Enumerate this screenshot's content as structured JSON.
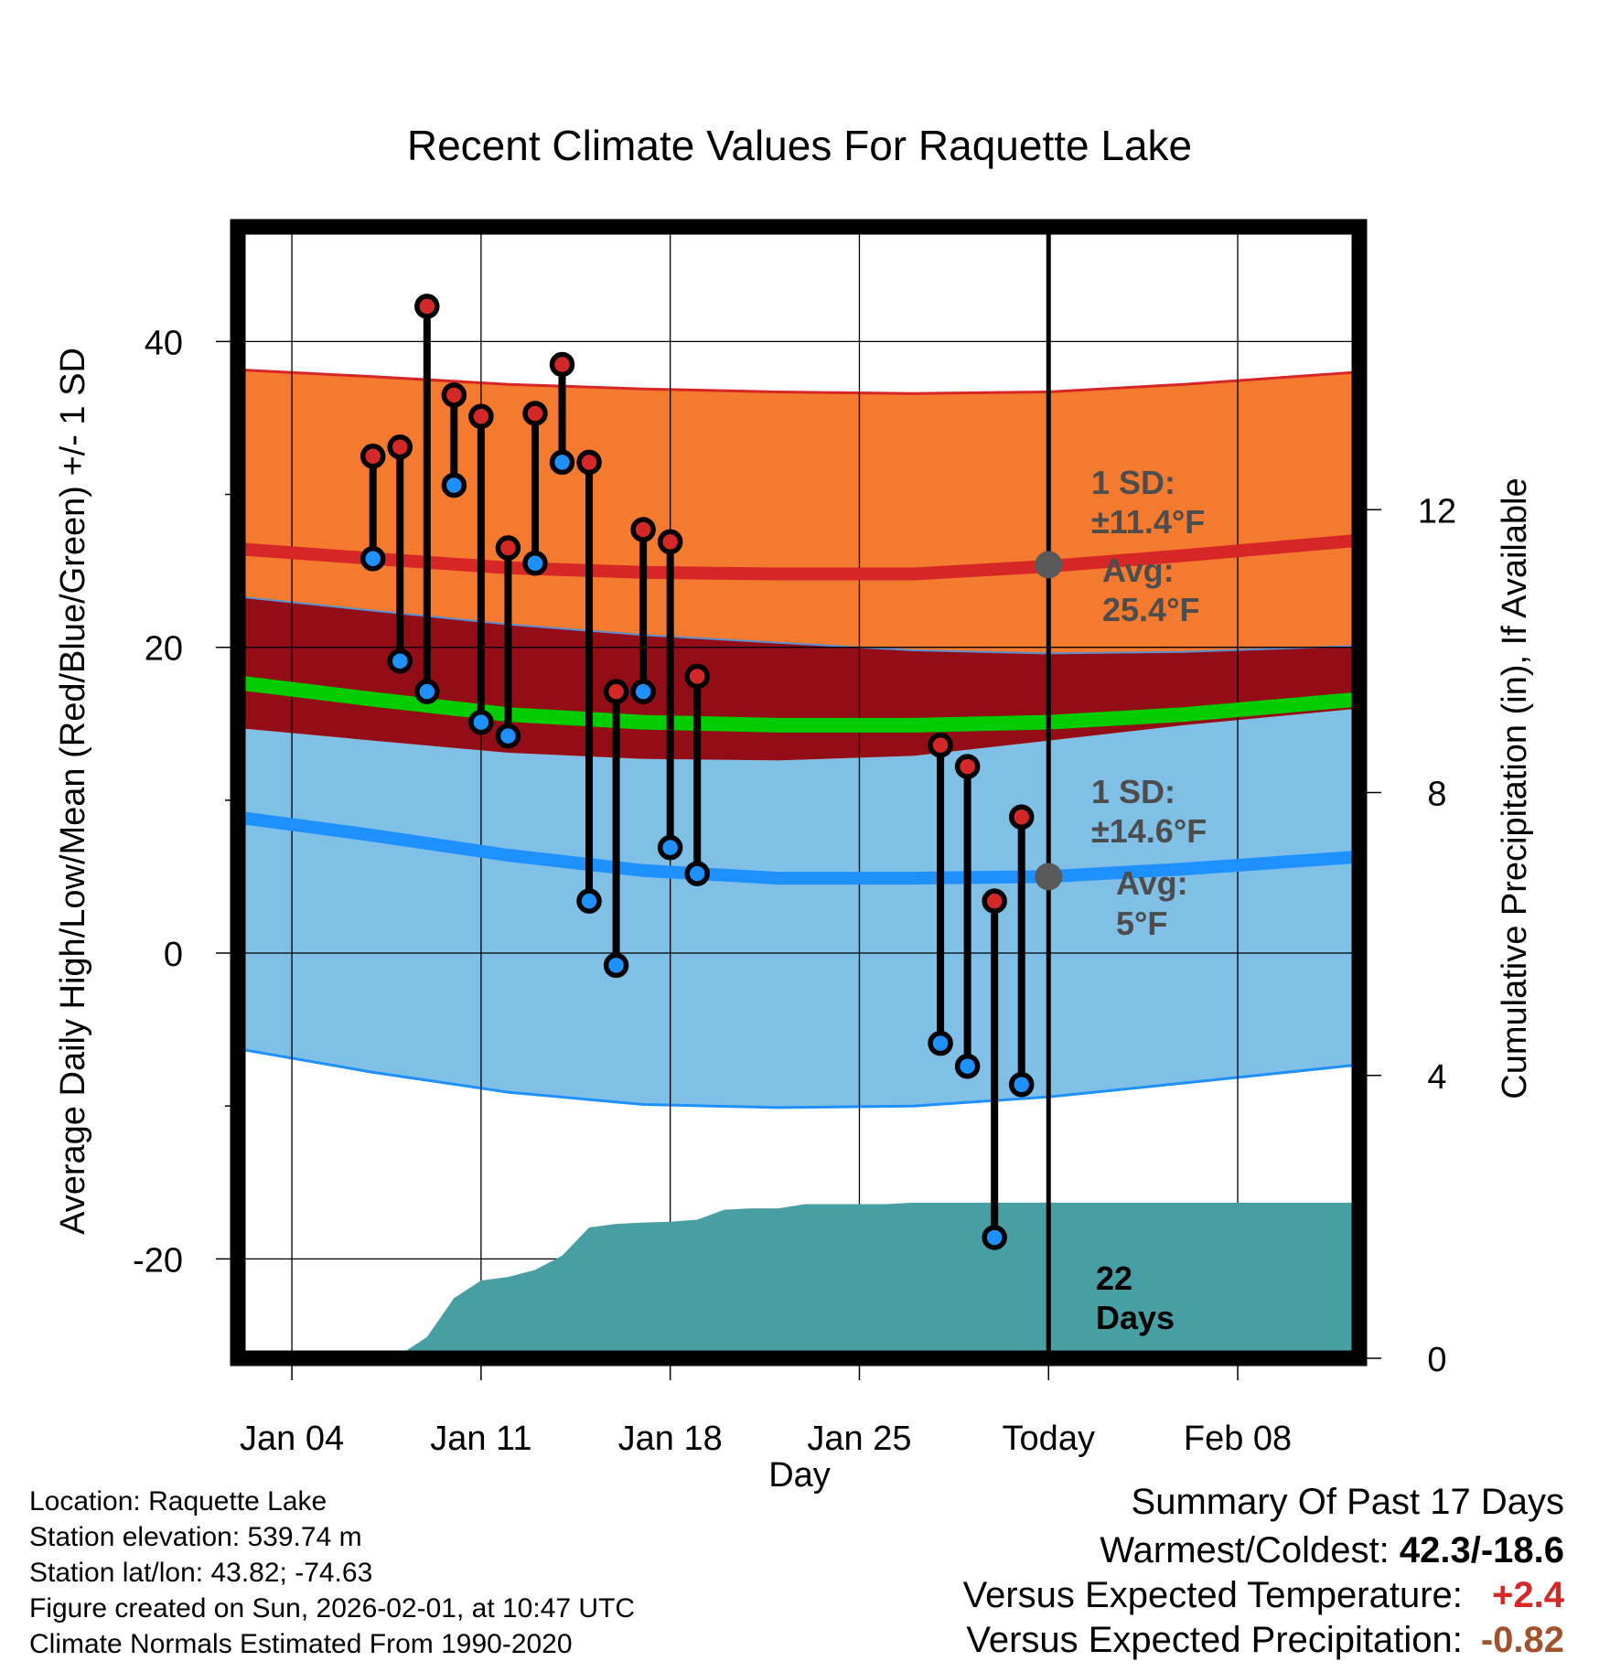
{
  "chart_data": {
    "type": "line",
    "title": "Recent Climate Values For Raquette Lake",
    "xlabel": "Day",
    "ylabel": "Average Daily High/Low/Mean (Red/Blue/Green) +/- 1 SD",
    "y2label": "Cumulative Precipitation (in), If Available",
    "xlim": [
      0,
      41.5
    ],
    "ylim": [
      -26.5,
      47.5
    ],
    "y2lim": [
      0,
      16
    ],
    "x_ticks": [
      {
        "x": 2,
        "label": "Jan 04"
      },
      {
        "x": 9,
        "label": "Jan 11"
      },
      {
        "x": 16,
        "label": "Jan 18"
      },
      {
        "x": 23,
        "label": "Jan 25"
      },
      {
        "x": 30,
        "label": "Today"
      },
      {
        "x": 37,
        "label": "Feb 08"
      }
    ],
    "y_ticks": [
      {
        "value": 40,
        "label": "40"
      },
      {
        "value": 20,
        "label": "20"
      },
      {
        "value": 0,
        "label": "0"
      },
      {
        "value": -20,
        "label": "-20"
      }
    ],
    "y_minor_ticks": [
      30,
      10,
      -10
    ],
    "y2_ticks": [
      {
        "value": 0,
        "label": "0"
      },
      {
        "value": 4,
        "label": "4"
      },
      {
        "value": 8,
        "label": "8"
      },
      {
        "value": 12,
        "label": "12"
      }
    ],
    "today_x": 30,
    "normals_x": [
      -0.5,
      5,
      10,
      15,
      20,
      25,
      30,
      35,
      41.5
    ],
    "normal_high": [
      26.5,
      25.8,
      25.2,
      24.9,
      24.8,
      24.8,
      25.3,
      26.0,
      27.0
    ],
    "normal_high_upper": [
      38.2,
      37.7,
      37.2,
      36.9,
      36.7,
      36.6,
      36.7,
      37.2,
      38.0
    ],
    "normal_high_lower": [
      23.4,
      22.4,
      21.5,
      20.8,
      20.3,
      19.8,
      19.6,
      19.7,
      20.1
    ],
    "normal_low": [
      9.0,
      7.7,
      6.4,
      5.4,
      4.9,
      4.9,
      5.0,
      5.5,
      6.3
    ],
    "normal_low_upper": [
      14.8,
      13.9,
      13.1,
      12.7,
      12.6,
      12.9,
      13.9,
      14.9,
      16.0
    ],
    "normal_low_lower": [
      -6.1,
      -7.8,
      -9.1,
      -9.9,
      -10.1,
      -10.0,
      -9.4,
      -8.5,
      -7.3
    ],
    "normal_mean": [
      17.8,
      16.6,
      15.6,
      15.1,
      14.9,
      14.9,
      15.1,
      15.6,
      16.6
    ],
    "daily": [
      {
        "x": 5,
        "high": 32.5,
        "low": 25.8
      },
      {
        "x": 6,
        "high": 33.1,
        "low": 19.1
      },
      {
        "x": 7,
        "high": 42.3,
        "low": 17.1
      },
      {
        "x": 8,
        "high": 36.5,
        "low": 30.6
      },
      {
        "x": 9,
        "high": 35.1,
        "low": 15.1
      },
      {
        "x": 10,
        "high": 26.5,
        "low": 14.2
      },
      {
        "x": 11,
        "high": 35.3,
        "low": 25.5
      },
      {
        "x": 12,
        "high": 38.5,
        "low": 32.1
      },
      {
        "x": 13,
        "high": 32.1,
        "low": 3.4
      },
      {
        "x": 14,
        "high": 17.1,
        "low": -0.8
      },
      {
        "x": 15,
        "high": 27.7,
        "low": 17.1
      },
      {
        "x": 16,
        "high": 26.9,
        "low": 6.9
      },
      {
        "x": 17,
        "high": 18.1,
        "low": 5.2
      },
      {
        "x": 26,
        "high": 13.6,
        "low": -5.9
      },
      {
        "x": 27,
        "high": 12.2,
        "low": -7.4
      },
      {
        "x": 28,
        "high": 3.4,
        "low": -18.6
      },
      {
        "x": 29,
        "high": 8.9,
        "low": -8.6
      }
    ],
    "precip_x": [
      0,
      5,
      6,
      7,
      8,
      9,
      10,
      11,
      12,
      13,
      14,
      15,
      16,
      17,
      18,
      19,
      20,
      21,
      22,
      23,
      24,
      25,
      26,
      27,
      28,
      29,
      30,
      41.5
    ],
    "precip_cumulative": [
      0,
      0,
      0.05,
      0.3,
      0.85,
      1.1,
      1.15,
      1.25,
      1.45,
      1.85,
      1.9,
      1.92,
      1.93,
      1.96,
      2.1,
      2.12,
      2.12,
      2.18,
      2.18,
      2.18,
      2.18,
      2.2,
      2.2,
      2.2,
      2.2,
      2.2,
      2.2,
      2.2
    ],
    "annotations": {
      "high_sd_label": "1 SD:",
      "high_sd_value": "±11.4°F",
      "high_avg_label": "Avg:",
      "high_avg_value": "25.4°F",
      "low_sd_label": "1 SD:",
      "low_sd_value": "±14.6°F",
      "low_avg_label": "Avg:",
      "low_avg_value": "5°F",
      "high_avg_point": 25.4,
      "low_avg_point": 5,
      "precip_days_line1": "22",
      "precip_days_line2": "Days"
    },
    "colors": {
      "high_band": "#f47a2f",
      "high_line": "#d62626",
      "overlap_band": "#920d15",
      "mean_line": "#00cc00",
      "low_band": "#80bfe6",
      "low_line": "#1e90ff",
      "low_edge": "#1e90ff",
      "precip": "#479ea3",
      "high_dot": "#d42828",
      "low_dot": "#1e90ff",
      "avg_dot": "#595959",
      "annotation_text": "#4d4d4d"
    }
  },
  "info": {
    "location": "Location: Raquette Lake",
    "elevation": "Station elevation: 539.74 m",
    "latlon": "Station lat/lon: 43.82; -74.63",
    "created": "Figure created on Sun, 2026-02-01, at 10:47 UTC",
    "normals": "Climate Normals Estimated From 1990-2020"
  },
  "summary": {
    "title": "Summary Of Past 17 Days",
    "warm_cold_label": "Warmest/Coldest:",
    "warm_cold_value": "42.3/-18.6",
    "temp_label": "Versus Expected Temperature:",
    "temp_value": "+2.4",
    "precip_label": "Versus Expected Precipitation:",
    "precip_value": "-0.82",
    "temp_color": "#d42828",
    "precip_color": "#a0522d"
  }
}
